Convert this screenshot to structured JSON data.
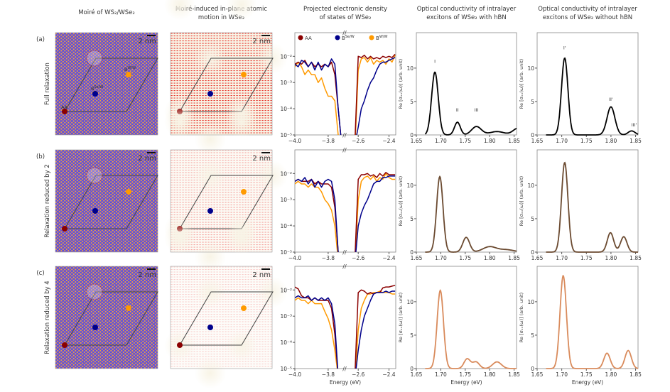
{
  "column_titles": [
    [
      "Moiré of WS₂/WSe₂"
    ],
    [
      "Moiré-induced in-plane atomic",
      "motion in WSe₂"
    ],
    [
      "Projected electronic density",
      "of states of WSe₂"
    ],
    [
      "Optical conductivity of intralayer",
      "excitons of WSe₂ with hBN"
    ],
    [
      "Optical conductivity of intralayer",
      "excitons of WSe₂ without hBN"
    ]
  ],
  "rows": [
    {
      "tag": "(a)",
      "label": "Full relaxation",
      "spectrum_color": "#000000"
    },
    {
      "tag": "(b)",
      "label": "Relaxation reduced by 2",
      "spectrum_color": "#6b4a30"
    },
    {
      "tag": "(c)",
      "label": "Relaxation reduced by 4",
      "spectrum_color": "#d98b5c"
    }
  ],
  "scale_bar": "2 nm",
  "stacking_points": [
    {
      "name": "AA",
      "sup": "",
      "color": "#8b0000"
    },
    {
      "name": "B",
      "sup": "Se/W",
      "color": "#00008b"
    },
    {
      "name": "B",
      "sup": "W/W",
      "color": "#ff9a00"
    }
  ],
  "moire_colors": {
    "background": "#5b4de0",
    "dots": "#f0a040",
    "motion": "#e8322a",
    "motion_background": "#f8f4e6"
  },
  "chart_data": [
    {
      "type": "line",
      "panel": "projected-dos",
      "y_scale": "log",
      "ylim": [
        1e-05,
        0.08
      ],
      "xlim_segments": [
        [
          -4.0,
          -3.71
        ],
        [
          -2.684,
          -2.356
        ]
      ],
      "axis_break": true,
      "xticks": [
        -4.0,
        -3.8,
        -2.6,
        -2.4
      ],
      "xtick_labels": [
        "−4.0",
        "−3.8",
        "−2.6",
        "−2.4"
      ],
      "ytick_labels": [
        "10⁻⁵",
        "10⁻⁴",
        "10⁻³",
        "10⁻²"
      ],
      "yticks": [
        1e-05,
        0.0001,
        0.001,
        0.01
      ],
      "xlabel": "Energy (eV)",
      "legend": [
        "AA",
        "BSe/W",
        "BW/W"
      ],
      "legend_placement": "top",
      "x_left": [
        -4.0,
        -3.98,
        -3.96,
        -3.94,
        -3.92,
        -3.9,
        -3.88,
        -3.86,
        -3.84,
        -3.82,
        -3.8,
        -3.78,
        -3.76,
        -3.74,
        -3.72
      ],
      "x_right": [
        -2.64,
        -2.62,
        -2.6,
        -2.58,
        -2.56,
        -2.54,
        -2.52,
        -2.5,
        -2.48,
        -2.46,
        -2.44,
        -2.42,
        -2.4,
        -2.38,
        -2.36
      ],
      "rows": [
        {
          "series": [
            {
              "name": "AA",
              "left": [
                0.005,
                0.006,
                0.005,
                0.007,
                0.004,
                0.006,
                0.004,
                0.005,
                0.004,
                0.005,
                0.004,
                0.006,
                0.002,
                0.0001,
                1e-07
              ],
              "right": [
                1e-07,
                1e-05,
                0.01,
                0.009,
                0.011,
                0.008,
                0.01,
                0.008,
                0.009,
                0.008,
                0.01,
                0.009,
                0.01,
                0.009,
                0.012
              ]
            },
            {
              "name": "BSe/W",
              "left": [
                0.005,
                0.004,
                0.007,
                0.006,
                0.004,
                0.006,
                0.003,
                0.006,
                0.003,
                0.005,
                0.004,
                0.008,
                0.005,
                0.0001,
                1e-07
              ],
              "right": [
                1e-07,
                1e-07,
                2e-05,
                0.0001,
                0.0002,
                0.0005,
                0.001,
                0.0015,
                0.003,
                0.005,
                0.006,
                0.006,
                0.007,
                0.008,
                0.009
              ]
            },
            {
              "name": "BW/W",
              "left": [
                0.004,
                0.006,
                0.004,
                0.002,
                0.003,
                0.002,
                0.002,
                0.001,
                0.0015,
                0.0006,
                0.0003,
                0.0003,
                0.0002,
                1e-05,
                1e-07
              ],
              "right": [
                1e-07,
                5e-06,
                0.003,
                0.008,
                0.009,
                0.006,
                0.009,
                0.005,
                0.007,
                0.006,
                0.007,
                0.005,
                0.008,
                0.006,
                0.011
              ]
            }
          ]
        },
        {
          "series": [
            {
              "name": "AA",
              "left": [
                0.005,
                0.006,
                0.005,
                0.005,
                0.005,
                0.006,
                0.004,
                0.005,
                0.004,
                0.004,
                0.004,
                0.003,
                0.0005,
                1e-05,
                1e-07
              ],
              "right": [
                1e-07,
                1e-05,
                0.006,
                0.009,
                0.009,
                0.01,
                0.008,
                0.009,
                0.007,
                0.01,
                0.008,
                0.011,
                0.009,
                0.009,
                0.009
              ]
            },
            {
              "name": "BSe/W",
              "left": [
                0.005,
                0.006,
                0.005,
                0.007,
                0.004,
                0.006,
                0.003,
                0.005,
                0.003,
                0.005,
                0.006,
                0.005,
                0.001,
                1e-05,
                1e-07
              ],
              "right": [
                1e-07,
                1e-07,
                0.0001,
                0.0003,
                0.0006,
                0.001,
                0.002,
                0.004,
                0.005,
                0.005,
                0.007,
                0.007,
                0.008,
                0.008,
                0.008
              ]
            },
            {
              "name": "BW/W",
              "left": [
                0.004,
                0.005,
                0.004,
                0.004,
                0.003,
                0.004,
                0.003,
                0.003,
                0.002,
                0.001,
                0.0007,
                0.0004,
                0.0001,
                1e-06,
                1e-07
              ],
              "right": [
                1e-07,
                3e-06,
                0.001,
                0.005,
                0.007,
                0.008,
                0.006,
                0.008,
                0.005,
                0.007,
                0.006,
                0.01,
                0.007,
                0.006,
                0.006
              ]
            }
          ]
        },
        {
          "series": [
            {
              "name": "AA",
              "left": [
                0.013,
                0.011,
                0.006,
                0.005,
                0.005,
                0.004,
                0.005,
                0.004,
                0.004,
                0.004,
                0.004,
                0.002,
                0.0002,
                1e-06,
                1e-07
              ],
              "right": [
                1e-07,
                1e-05,
                0.008,
                0.01,
                0.009,
                0.007,
                0.008,
                0.007,
                0.008,
                0.008,
                0.012,
                0.013,
                0.013,
                0.014,
                0.015
              ]
            },
            {
              "name": "BSe/W",
              "left": [
                0.005,
                0.006,
                0.005,
                0.005,
                0.006,
                0.004,
                0.005,
                0.004,
                0.005,
                0.004,
                0.005,
                0.003,
                0.0005,
                1e-06,
                1e-07
              ],
              "right": [
                1e-07,
                1e-07,
                5e-05,
                0.0003,
                0.001,
                0.002,
                0.004,
                0.007,
                0.008,
                0.008,
                0.008,
                0.009,
                0.008,
                0.009,
                0.009
              ]
            },
            {
              "name": "BW/W",
              "left": [
                0.004,
                0.005,
                0.004,
                0.004,
                0.003,
                0.004,
                0.003,
                0.003,
                0.003,
                0.0015,
                0.0008,
                0.0003,
                5e-05,
                1e-06,
                1e-07
              ],
              "right": [
                1e-07,
                5e-06,
                0.0003,
                0.002,
                0.004,
                0.007,
                0.007,
                0.008,
                0.008,
                0.009,
                0.008,
                0.008,
                0.008,
                0.007,
                0.007
              ]
            }
          ]
        }
      ]
    },
    {
      "type": "line",
      "panel": "optical-conductivity-with-hbn",
      "xlim": [
        1.65,
        1.855
      ],
      "ylim": [
        0,
        15.3
      ],
      "xticks": [
        1.65,
        1.7,
        1.75,
        1.8,
        1.85
      ],
      "xtick_labels": [
        "1.65",
        "1.70",
        "1.75",
        "1.80",
        "1.85"
      ],
      "yticks": [
        0,
        5,
        10
      ],
      "ytick_labels": [
        "0",
        "5",
        "10"
      ],
      "xlabel": "Energy (eV)",
      "ylabel": "Re [σₓₓ(ω)] (arb. unit)",
      "rows": [
        {
          "peaks": [
            {
              "energy": 1.688,
              "height": 9.4,
              "sigma": 0.0068
            },
            {
              "energy": 1.734,
              "height": 1.9,
              "sigma": 0.006
            },
            {
              "energy": 1.773,
              "height": 1.25,
              "sigma": 0.01
            },
            {
              "energy": 1.815,
              "height": 0.5,
              "sigma": 0.015
            },
            {
              "energy": 1.858,
              "height": 1.0,
              "sigma": 0.01
            }
          ],
          "annotations": [
            {
              "text": "I",
              "energy": 1.688,
              "value": 10.8
            },
            {
              "text": "II",
              "energy": 1.734,
              "value": 3.5
            },
            {
              "text": "III",
              "energy": 1.773,
              "value": 3.5
            }
          ]
        },
        {
          "peaks": [
            {
              "energy": 1.698,
              "height": 11.3,
              "sigma": 0.0065
            },
            {
              "energy": 1.752,
              "height": 2.2,
              "sigma": 0.007
            },
            {
              "energy": 1.8,
              "height": 0.8,
              "sigma": 0.014
            },
            {
              "energy": 1.835,
              "height": 0.35,
              "sigma": 0.015
            }
          ],
          "annotations": []
        },
        {
          "peaks": [
            {
              "energy": 1.699,
              "height": 11.7,
              "sigma": 0.0065
            },
            {
              "energy": 1.754,
              "height": 1.45,
              "sigma": 0.0065
            },
            {
              "energy": 1.772,
              "height": 1.0,
              "sigma": 0.007
            },
            {
              "energy": 1.815,
              "height": 1.0,
              "sigma": 0.009
            }
          ],
          "annotations": []
        }
      ]
    },
    {
      "type": "line",
      "panel": "optical-conductivity-without-hbn",
      "xlim": [
        1.65,
        1.855
      ],
      "ylim": [
        0,
        15.3
      ],
      "xticks": [
        1.65,
        1.7,
        1.75,
        1.8,
        1.85
      ],
      "xtick_labels": [
        "1.65",
        "1.70",
        "1.75",
        "1.80",
        "1.85"
      ],
      "yticks": [
        0,
        5,
        10
      ],
      "ytick_labels": [
        "0",
        "5",
        "10"
      ],
      "xlabel": "Energy (eV)",
      "ylabel": "Re [σₓₓ(ω)] (arb. unit)",
      "rows": [
        {
          "peaks": [
            {
              "energy": 1.706,
              "height": 11.5,
              "sigma": 0.0065
            },
            {
              "energy": 1.8,
              "height": 4.2,
              "sigma": 0.008
            },
            {
              "energy": 1.842,
              "height": 0.6,
              "sigma": 0.007
            }
          ],
          "annotations": [
            {
              "text": "I'",
              "energy": 1.706,
              "value": 12.8
            },
            {
              "text": "II'",
              "energy": 1.8,
              "value": 5.1
            },
            {
              "text": "III'",
              "energy": 1.847,
              "value": 1.3
            }
          ]
        },
        {
          "peaks": [
            {
              "energy": 1.706,
              "height": 13.4,
              "sigma": 0.0065
            },
            {
              "energy": 1.799,
              "height": 2.9,
              "sigma": 0.0065
            },
            {
              "energy": 1.826,
              "height": 2.3,
              "sigma": 0.0065
            }
          ],
          "annotations": []
        },
        {
          "peaks": [
            {
              "energy": 1.703,
              "height": 13.9,
              "sigma": 0.0065
            },
            {
              "energy": 1.792,
              "height": 2.3,
              "sigma": 0.0065
            },
            {
              "energy": 1.835,
              "height": 2.7,
              "sigma": 0.0065
            }
          ],
          "annotations": []
        }
      ]
    }
  ]
}
